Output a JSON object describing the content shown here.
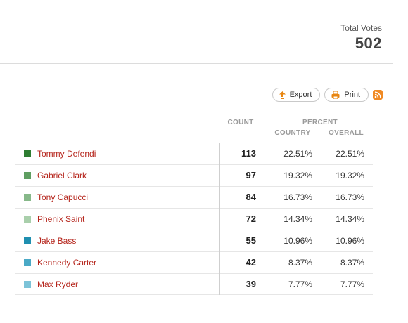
{
  "total": {
    "label": "Total Votes",
    "value": "502"
  },
  "toolbar": {
    "export_label": "Export",
    "print_label": "Print"
  },
  "headers": {
    "count": "COUNT",
    "percent": "PERCENT",
    "country": "COUNTRY",
    "overall": "OVERALL"
  },
  "rows": [
    {
      "name": "Tommy Defendi",
      "count": "113",
      "country": "22.51%",
      "overall": "22.51%",
      "color": "#2e7d32"
    },
    {
      "name": "Gabriel Clark",
      "count": "97",
      "country": "19.32%",
      "overall": "19.32%",
      "color": "#5e9e61"
    },
    {
      "name": "Tony Capucci",
      "count": "84",
      "country": "16.73%",
      "overall": "16.73%",
      "color": "#86b889"
    },
    {
      "name": "Phenix Saint",
      "count": "72",
      "country": "14.34%",
      "overall": "14.34%",
      "color": "#a9cfab"
    },
    {
      "name": "Jake Bass",
      "count": "55",
      "country": "10.96%",
      "overall": "10.96%",
      "color": "#1f8fb0"
    },
    {
      "name": "Kennedy Carter",
      "count": "42",
      "country": "8.37%",
      "overall": "8.37%",
      "color": "#4aa9c6"
    },
    {
      "name": "Max Ryder",
      "count": "39",
      "country": "7.77%",
      "overall": "7.77%",
      "color": "#7cc3d8"
    }
  ],
  "icons": {
    "export": "export-icon",
    "print": "print-icon",
    "rss": "rss-icon"
  }
}
